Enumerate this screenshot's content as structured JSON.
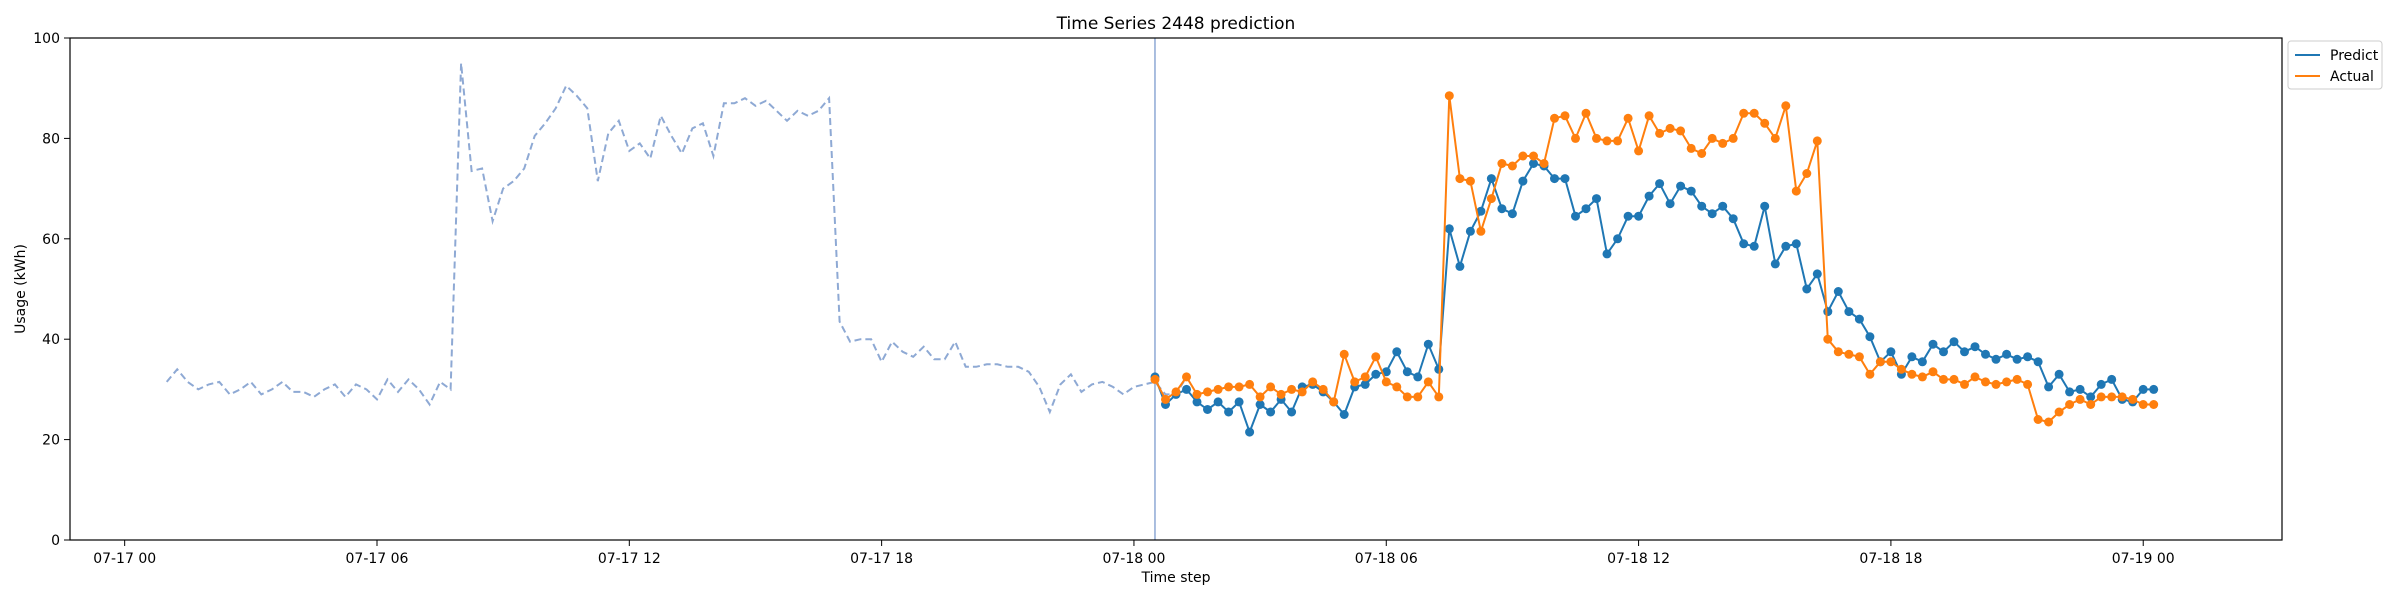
{
  "chart_data": {
    "type": "line",
    "title": "Time Series 2448 prediction",
    "xlabel": "Time step",
    "ylabel": "Usage (kWh)",
    "ylim": [
      0,
      100
    ],
    "y_ticks": [
      0,
      20,
      40,
      60,
      80,
      100
    ],
    "x_ticks": [
      "07-17 00",
      "07-17 06",
      "07-17 12",
      "07-17 18",
      "07-18 00",
      "07-18 06",
      "07-18 12",
      "07-18 18",
      "07-19 00"
    ],
    "x_tick_hours": [
      0,
      6,
      12,
      18,
      24,
      30,
      36,
      42,
      48
    ],
    "xlim_hours": [
      -1.3,
      51.3
    ],
    "time_step_hours": 0.25,
    "forecast_start_hour": 24.5,
    "legend_position": "upper right, outside plot",
    "colors": {
      "history": "#8EA9D4",
      "forecast_marker": "#8EA9D4",
      "predict": "#1F77B4",
      "actual": "#FF7F0E"
    },
    "history": {
      "start_hour": 1.0,
      "values": [
        31.5,
        34.0,
        31.5,
        30.0,
        31.0,
        31.5,
        29.0,
        30.0,
        31.5,
        29.0,
        30.0,
        31.5,
        29.5,
        29.5,
        28.5,
        30.0,
        31.0,
        28.5,
        31.0,
        30.0,
        28.0,
        32.0,
        29.5,
        32.0,
        30.0,
        27.0,
        31.5,
        30.0,
        95.0,
        73.5,
        74.0,
        63.5,
        70.0,
        71.5,
        74.0,
        80.5,
        83.0,
        86.0,
        90.5,
        88.5,
        86.0,
        71.5,
        81.0,
        83.5,
        77.5,
        79.0,
        76.0,
        84.5,
        80.5,
        77.0,
        82.0,
        83.0,
        76.5,
        87.0,
        87.0,
        88.0,
        86.5,
        87.5,
        85.5,
        83.5,
        85.5,
        84.5,
        85.5,
        88.0,
        43.5,
        39.5,
        40.0,
        40.0,
        35.5,
        39.5,
        37.5,
        36.5,
        38.5,
        36.0,
        36.0,
        39.5,
        34.5,
        34.5,
        35.0,
        35.0,
        34.5,
        34.5,
        33.5,
        30.5,
        25.5,
        31.0,
        33.0,
        29.5,
        31.0,
        31.5,
        30.5,
        29.0,
        30.5,
        31.0,
        31.5,
        29.0,
        29.0,
        32.5
      ]
    },
    "series": [
      {
        "name": "Predict",
        "start_hour": 24.5,
        "values": [
          32.5,
          27.0,
          29.0,
          30.0,
          27.5,
          26.0,
          27.5,
          25.5,
          27.5,
          21.5,
          27.0,
          25.5,
          28.0,
          25.5,
          30.5,
          31.0,
          29.5,
          27.5,
          25.0,
          30.5,
          31.0,
          33.0,
          33.5,
          37.5,
          33.5,
          32.5,
          39.0,
          34.0,
          62.0,
          54.5,
          61.5,
          65.5,
          72.0,
          66.0,
          65.0,
          71.5,
          75.0,
          74.5,
          72.0,
          72.0,
          64.5,
          66.0,
          68.0,
          57.0,
          60.0,
          64.5,
          64.5,
          68.5,
          71.0,
          67.0,
          70.5,
          69.5,
          66.5,
          65.0,
          66.5,
          64.0,
          59.0,
          58.5,
          66.5,
          55.0,
          58.5,
          59.0,
          50.0,
          53.0,
          45.5,
          49.5,
          45.5,
          44.0,
          40.5,
          35.5,
          37.5,
          33.0,
          36.5,
          35.5,
          39.0,
          37.5,
          39.5,
          37.5,
          38.5,
          37.0,
          36.0,
          37.0,
          36.0,
          36.5,
          35.5,
          30.5,
          33.0,
          29.5,
          30.0,
          28.5,
          31.0,
          32.0,
          28.0,
          27.5,
          30.0,
          30.0
        ]
      },
      {
        "name": "Actual",
        "start_hour": 24.5,
        "values": [
          32.0,
          28.0,
          29.5,
          32.5,
          29.0,
          29.5,
          30.0,
          30.5,
          30.5,
          31.0,
          28.5,
          30.5,
          29.0,
          30.0,
          29.5,
          31.5,
          30.0,
          27.5,
          37.0,
          31.5,
          32.5,
          36.5,
          31.5,
          30.5,
          28.5,
          28.5,
          31.5,
          28.5,
          88.5,
          72.0,
          71.5,
          61.5,
          68.0,
          75.0,
          74.5,
          76.5,
          76.5,
          75.0,
          84.0,
          84.5,
          80.0,
          85.0,
          80.0,
          79.5,
          79.5,
          84.0,
          77.5,
          84.5,
          81.0,
          82.0,
          81.5,
          78.0,
          77.0,
          80.0,
          79.0,
          80.0,
          85.0,
          85.0,
          83.0,
          80.0,
          86.5,
          69.5,
          73.0,
          79.5,
          40.0,
          37.5,
          37.0,
          36.5,
          33.0,
          35.5,
          35.5,
          34.0,
          33.0,
          32.5,
          33.5,
          32.0,
          32.0,
          31.0,
          32.5,
          31.5,
          31.0,
          31.5,
          32.0,
          31.0,
          24.0,
          23.5,
          25.5,
          27.0,
          28.0,
          27.0,
          28.5,
          28.5,
          28.5,
          28.0,
          27.0,
          27.0
        ]
      }
    ]
  }
}
